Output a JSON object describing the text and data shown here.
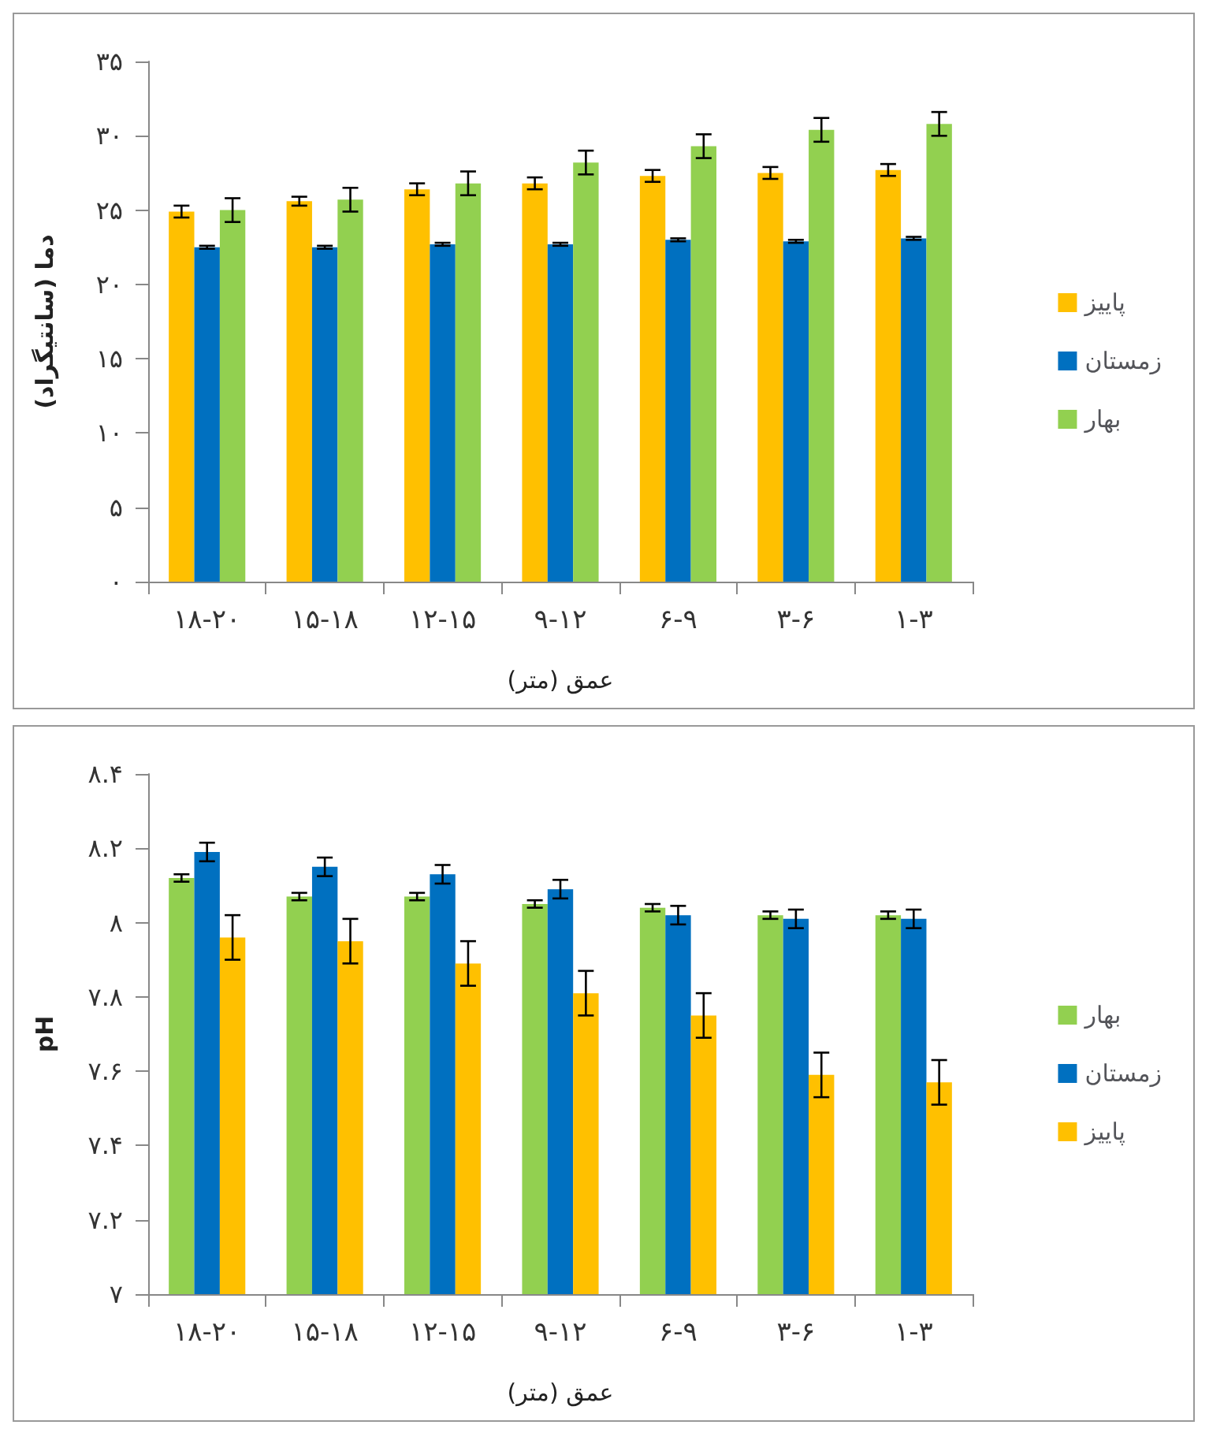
{
  "chart_data": [
    {
      "type": "bar",
      "categories": [
        "۱۸-۲۰",
        "۱۵-۱۸",
        "۱۲-۱۵",
        "۹-۱۲",
        "۶-۹",
        "۳-۶",
        "۱-۳"
      ],
      "xlabel": "عمق (متر)",
      "ylabel": "دما (سانتیگراد)",
      "ylim": [
        0,
        35
      ],
      "yticks": [
        {
          "value": 0,
          "label": "۰"
        },
        {
          "value": 5,
          "label": "۵"
        },
        {
          "value": 10,
          "label": "۱۰"
        },
        {
          "value": 15,
          "label": "۱۵"
        },
        {
          "value": 20,
          "label": "۲۰"
        },
        {
          "value": 25,
          "label": "۲۵"
        },
        {
          "value": 30,
          "label": "۳۰"
        },
        {
          "value": 35,
          "label": "۳۵"
        }
      ],
      "legend": "right",
      "series": [
        {
          "name": "پاییز",
          "color": "#ffc000",
          "values": [
            24.9,
            25.6,
            26.4,
            26.8,
            27.3,
            27.5,
            27.7
          ],
          "errors": [
            0.4,
            0.3,
            0.4,
            0.4,
            0.4,
            0.4,
            0.4
          ]
        },
        {
          "name": "زمستان",
          "color": "#0070c0",
          "values": [
            22.5,
            22.5,
            22.7,
            22.7,
            23.0,
            22.9,
            23.1
          ],
          "errors": [
            0.1,
            0.1,
            0.1,
            0.1,
            0.1,
            0.1,
            0.1
          ]
        },
        {
          "name": "بهار",
          "color": "#92d050",
          "values": [
            25.0,
            25.7,
            26.8,
            28.2,
            29.3,
            30.4,
            30.8
          ],
          "errors": [
            0.8,
            0.8,
            0.8,
            0.8,
            0.8,
            0.8,
            0.8
          ]
        }
      ]
    },
    {
      "type": "bar",
      "categories": [
        "۱۸-۲۰",
        "۱۵-۱۸",
        "۱۲-۱۵",
        "۹-۱۲",
        "۶-۹",
        "۳-۶",
        "۱-۳"
      ],
      "xlabel": "عمق (متر)",
      "ylabel": "pH",
      "ylim": [
        7,
        8.4
      ],
      "yticks": [
        {
          "value": 7,
          "label": "۷"
        },
        {
          "value": 7.2,
          "label": "۷.۲"
        },
        {
          "value": 7.4,
          "label": "۷.۴"
        },
        {
          "value": 7.6,
          "label": "۷.۶"
        },
        {
          "value": 7.8,
          "label": "۷.۸"
        },
        {
          "value": 8,
          "label": "۸"
        },
        {
          "value": 8.2,
          "label": "۸.۲"
        },
        {
          "value": 8.4,
          "label": "۸.۴"
        }
      ],
      "legend": "right",
      "series": [
        {
          "name": "بهار",
          "color": "#92d050",
          "values": [
            8.12,
            8.07,
            8.07,
            8.05,
            8.04,
            8.02,
            8.02
          ],
          "errors": [
            0.01,
            0.01,
            0.01,
            0.01,
            0.01,
            0.01,
            0.01
          ]
        },
        {
          "name": "زمستان",
          "color": "#0070c0",
          "values": [
            8.19,
            8.15,
            8.13,
            8.09,
            8.02,
            8.01,
            8.01
          ],
          "errors": [
            0.025,
            0.025,
            0.025,
            0.025,
            0.025,
            0.025,
            0.025
          ]
        },
        {
          "name": "پاییز",
          "color": "#ffc000",
          "values": [
            7.96,
            7.95,
            7.89,
            7.81,
            7.75,
            7.59,
            7.57
          ],
          "errors": [
            0.06,
            0.06,
            0.06,
            0.06,
            0.06,
            0.06,
            0.06
          ]
        }
      ]
    }
  ]
}
